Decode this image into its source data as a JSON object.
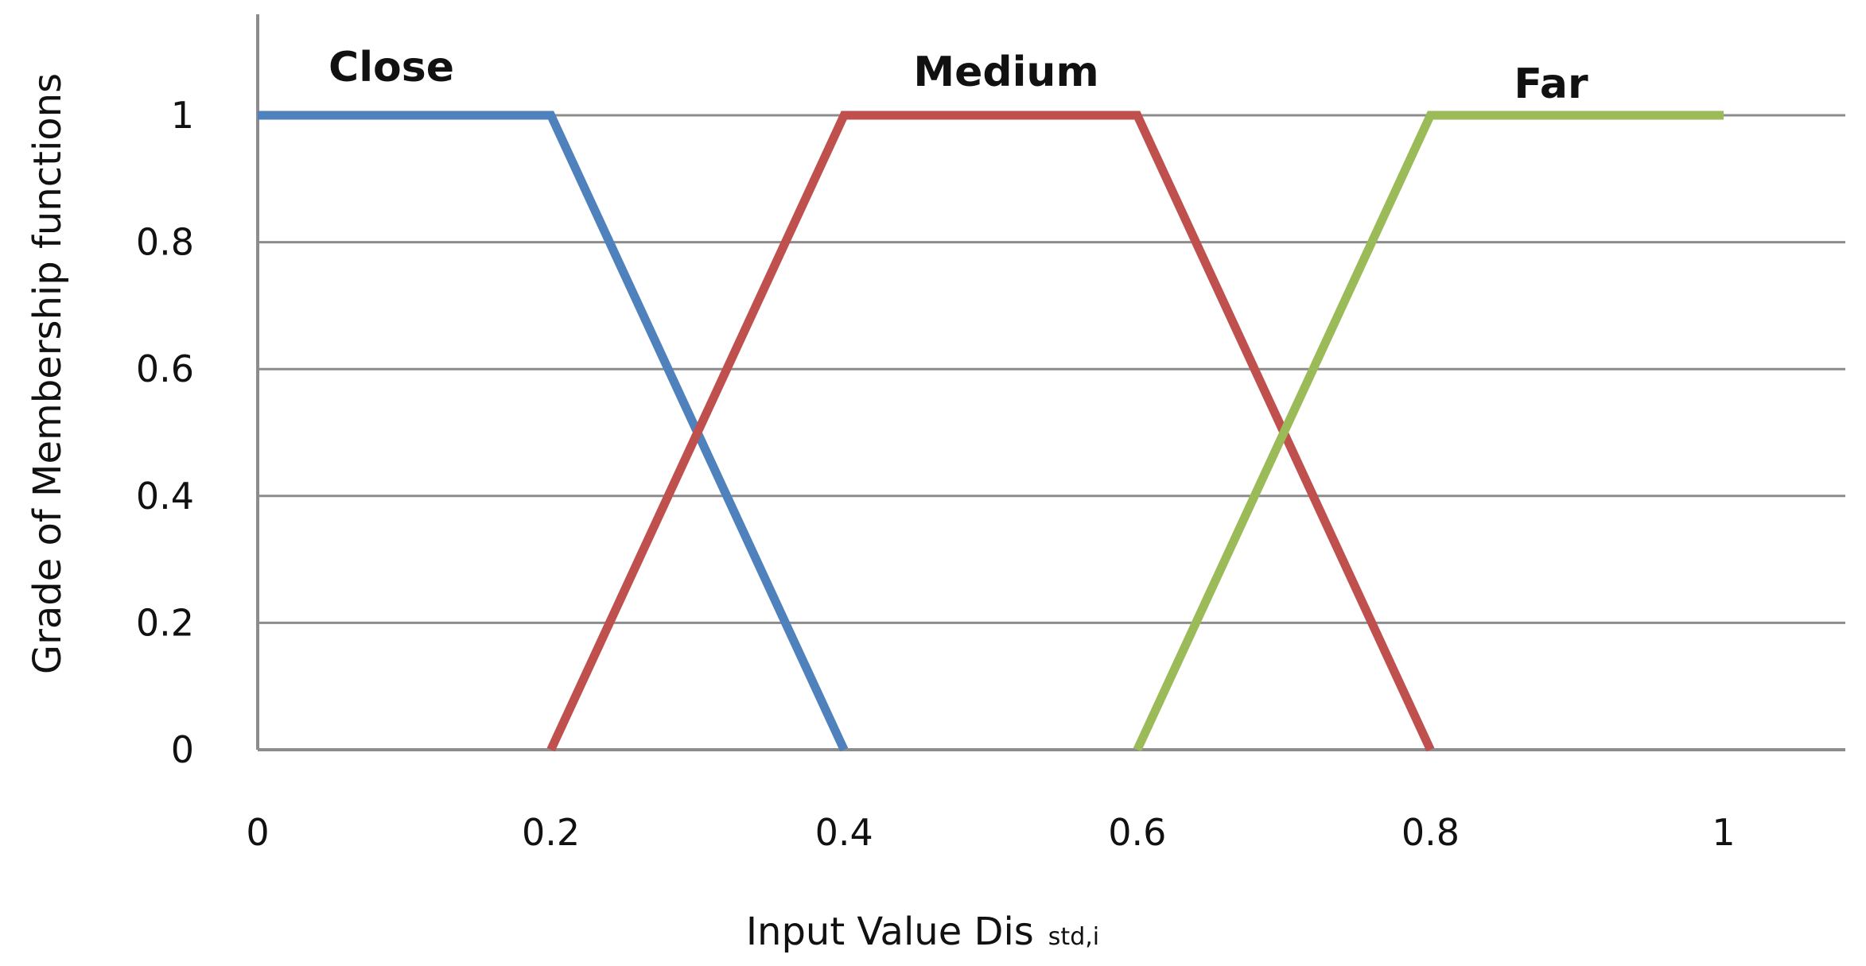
{
  "chart_data": {
    "type": "line",
    "title": "",
    "xlabel": "Input Value Dis",
    "xlabel_subscript": "std,i",
    "ylabel": "Grade of Membership functions",
    "xlim": [
      0,
      1.08
    ],
    "ylim": [
      0,
      1.1
    ],
    "x_ticks": [
      0,
      0.2,
      0.4,
      0.6,
      0.8,
      1
    ],
    "x_tick_labels": [
      "0",
      "0.2",
      "0.4",
      "0.6",
      "0.8",
      "1"
    ],
    "y_ticks": [
      0,
      0.2,
      0.4,
      0.6,
      0.8,
      1
    ],
    "y_tick_labels": [
      "0",
      "0.2",
      "0.4",
      "0.6",
      "0.8",
      "1"
    ],
    "grid": "horizontal",
    "legend": "none",
    "series": [
      {
        "name": "Close",
        "color": "#4f81bd",
        "points": [
          [
            0,
            1
          ],
          [
            0.2,
            1
          ],
          [
            0.4,
            0
          ]
        ]
      },
      {
        "name": "Medium",
        "color": "#c0504d",
        "points": [
          [
            0.2,
            0
          ],
          [
            0.4,
            1
          ],
          [
            0.6,
            1
          ],
          [
            0.8,
            0
          ]
        ]
      },
      {
        "name": "Far",
        "color": "#9bbb59",
        "points": [
          [
            0.6,
            0
          ],
          [
            0.8,
            1
          ],
          [
            1.0,
            1
          ]
        ]
      }
    ]
  }
}
